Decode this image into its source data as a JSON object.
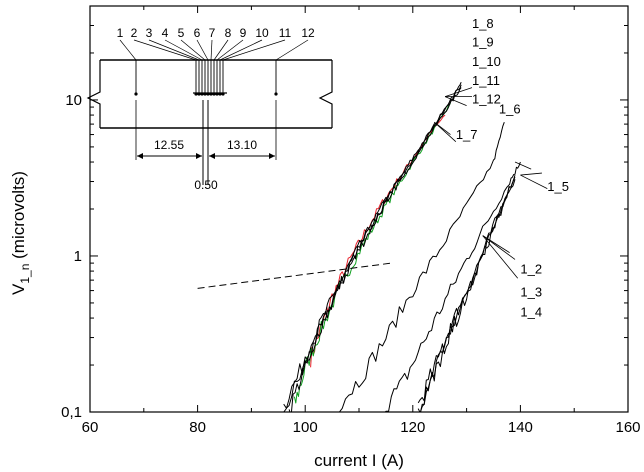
{
  "chart_data": {
    "type": "line",
    "xlabel": "current I (A)",
    "ylabel": "V",
    "ylabel_sub": "1_n",
    "ylabel_unit": "(microvolts)",
    "xlim": [
      60,
      160
    ],
    "ylim": [
      0.1,
      40
    ],
    "y_scale": "log",
    "grid": false,
    "x_ticks": [
      "60",
      "80",
      "100",
      "120",
      "140",
      "160"
    ],
    "y_ticks": [
      "0,1",
      "1",
      "10"
    ],
    "series_colors": {
      "black": "#000000",
      "red": "#e8202a",
      "green": "#10a020"
    },
    "series": [
      {
        "color": "red",
        "x": [
          101,
          103,
          105,
          108,
          111,
          114,
          117,
          120,
          123,
          126
        ],
        "y": [
          0.22,
          0.35,
          0.55,
          0.9,
          1.4,
          2.1,
          3.0,
          4.2,
          6.0,
          8.0
        ]
      },
      {
        "color": "green",
        "x": [
          98,
          100,
          103,
          106,
          109,
          112,
          115,
          118,
          121,
          124,
          127
        ],
        "y": [
          0.11,
          0.19,
          0.34,
          0.58,
          0.92,
          1.4,
          2.1,
          3.1,
          4.5,
          6.5,
          9.5
        ]
      },
      {
        "color": "black",
        "x": [
          96,
          100,
          103,
          106,
          109,
          112,
          115,
          118,
          121,
          124,
          127,
          129
        ],
        "y": [
          0.1,
          0.2,
          0.35,
          0.6,
          0.95,
          1.45,
          2.2,
          3.2,
          4.6,
          6.6,
          9.5,
          12
        ]
      },
      {
        "color": "black",
        "x": [
          96,
          100,
          103,
          106,
          109,
          112,
          115,
          118,
          121,
          124,
          127,
          129
        ],
        "y": [
          0.11,
          0.21,
          0.38,
          0.62,
          1.0,
          1.5,
          2.3,
          3.3,
          4.8,
          6.9,
          10,
          12.5
        ]
      },
      {
        "color": "black",
        "x": [
          97,
          100,
          103,
          106,
          109,
          112,
          115,
          118,
          121,
          124,
          127,
          129
        ],
        "y": [
          0.1,
          0.2,
          0.36,
          0.61,
          0.97,
          1.48,
          2.25,
          3.25,
          4.7,
          6.8,
          9.8,
          13
        ]
      },
      {
        "color": "black",
        "x": [
          105,
          110,
          115,
          120,
          125,
          130,
          135,
          137
        ],
        "y": [
          0.1,
          0.16,
          0.3,
          0.6,
          1.1,
          2.1,
          4.0,
          7.2
        ]
      },
      {
        "color": "black",
        "x": [
          114,
          118,
          122,
          126,
          130,
          134,
          138,
          140
        ],
        "y": [
          0.1,
          0.15,
          0.28,
          0.52,
          0.95,
          1.7,
          3.0,
          4.0
        ]
      },
      {
        "color": "black",
        "x": [
          121,
          124,
          127,
          130,
          133,
          136,
          139
        ],
        "y": [
          0.1,
          0.17,
          0.32,
          0.55,
          1.0,
          1.8,
          3.1
        ]
      },
      {
        "color": "black",
        "x": [
          121,
          124,
          127,
          130,
          133,
          136,
          139
        ],
        "y": [
          0.11,
          0.19,
          0.35,
          0.6,
          1.05,
          1.9,
          3.3
        ]
      },
      {
        "color": "black",
        "x": [
          121,
          124,
          127,
          130,
          133,
          136,
          139
        ],
        "y": [
          0.1,
          0.18,
          0.33,
          0.57,
          1.0,
          1.85,
          3.2
        ]
      }
    ],
    "threshold_line": {
      "x": [
        80,
        116
      ],
      "y": [
        0.62,
        0.9
      ]
    },
    "annotations": [
      {
        "text": "1_8",
        "x": 131,
        "y": 29
      },
      {
        "text": "1_9",
        "x": 131,
        "y": 22
      },
      {
        "text": "1_10",
        "x": 131,
        "y": 16.5
      },
      {
        "text": "1_11",
        "x": 131,
        "y": 12.5
      },
      {
        "text": "1_12",
        "x": 131,
        "y": 9.5
      },
      {
        "text": "1_7",
        "x": 128,
        "y": 5.6
      },
      {
        "text": "1_6",
        "x": 136,
        "y": 8.2
      },
      {
        "text": "1_5",
        "x": 145,
        "y": 2.6
      },
      {
        "text": "1_2",
        "x": 140,
        "y": 0.77
      },
      {
        "text": "1_3",
        "x": 140,
        "y": 0.55
      },
      {
        "text": "1_4",
        "x": 140,
        "y": 0.41
      }
    ],
    "inset": {
      "tap_labels": [
        "1",
        "2",
        "3",
        "4",
        "5",
        "6",
        "7",
        "8",
        "9",
        "10",
        "11",
        "12"
      ],
      "dimensions": [
        "12.55",
        "13.10",
        "0.50"
      ]
    }
  }
}
